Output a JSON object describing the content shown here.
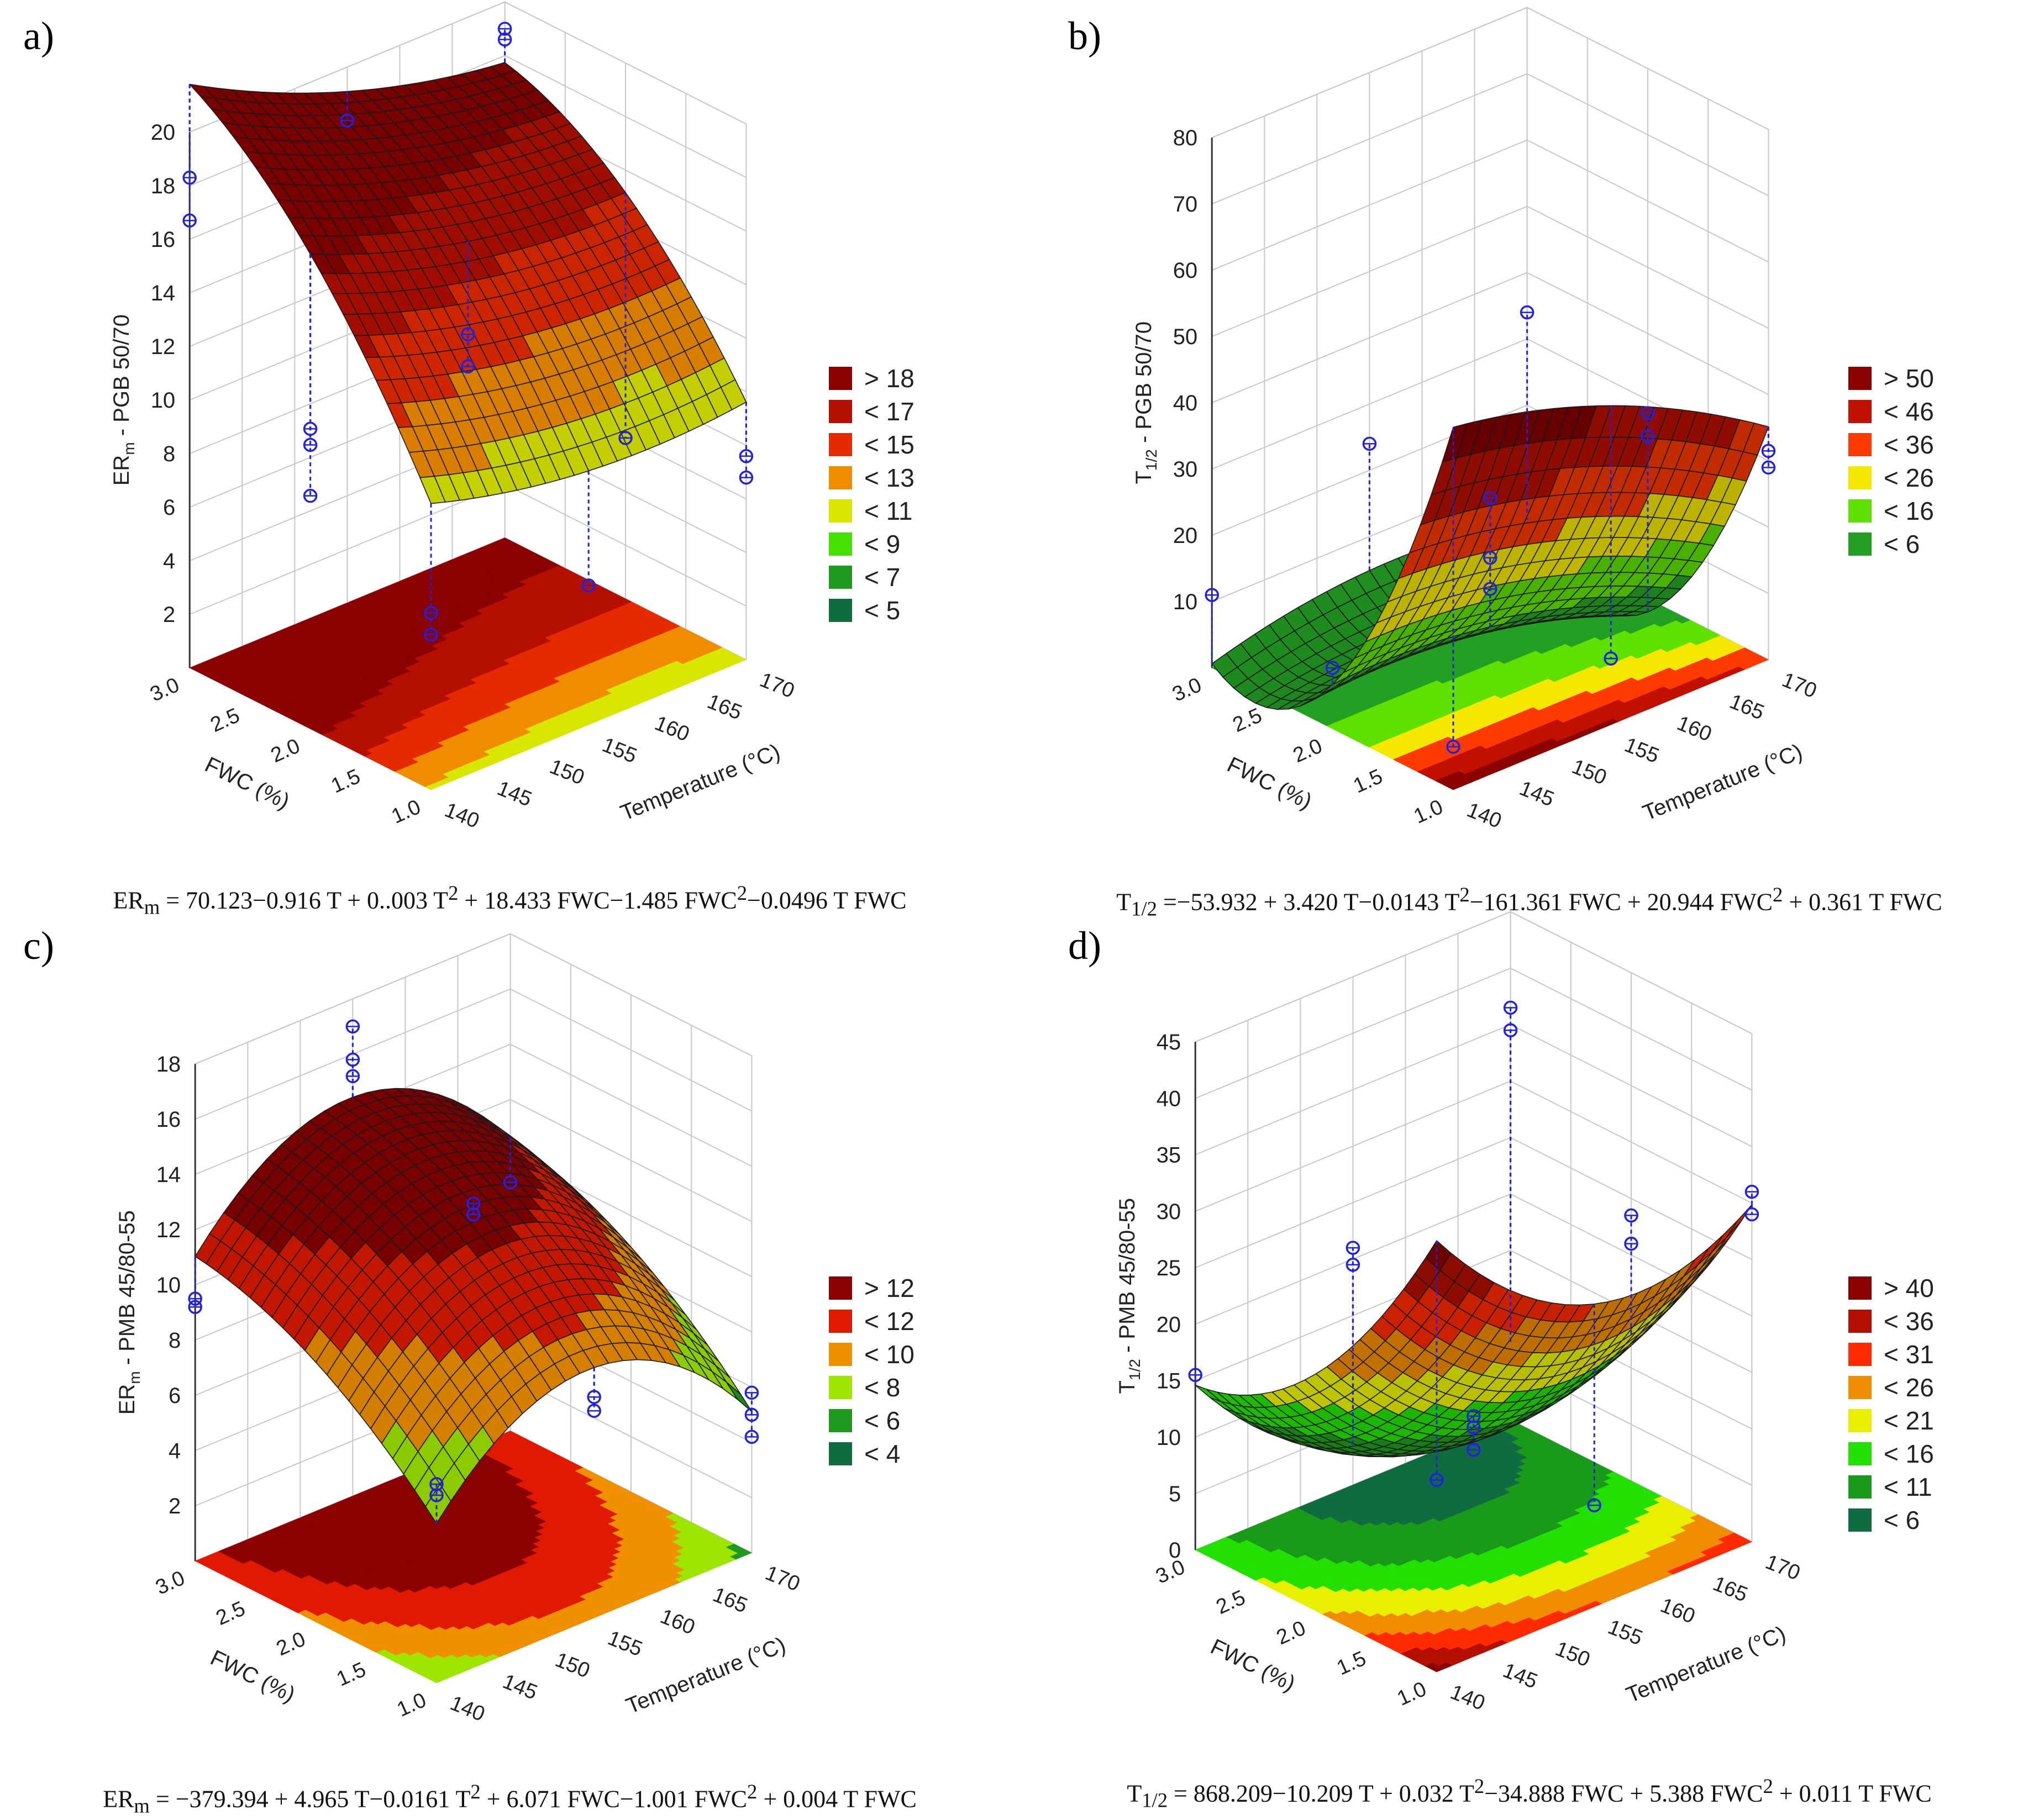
{
  "chart_data": [
    {
      "type": "surface3d",
      "panel_label": "a)",
      "zlabel": "ER",
      "zlabel_sub": "m",
      "zlabel_rest": " - PGB 50/70",
      "xlabel": "Temperature (°C)",
      "ylabel": "FWC (%)",
      "x_ticks": [
        "140",
        "145",
        "150",
        "155",
        "160",
        "165",
        "170"
      ],
      "y_ticks": [
        "1.0",
        "1.5",
        "2.0",
        "2.5",
        "3.0"
      ],
      "z_ticks": [
        "2",
        "4",
        "6",
        "8",
        "10",
        "12",
        "14",
        "16",
        "18",
        "20"
      ],
      "x_range": [
        140,
        170
      ],
      "y_range": [
        1.0,
        3.0
      ],
      "z_range": [
        0,
        20
      ],
      "coef": [
        70.123,
        -0.916,
        0.003,
        18.433,
        -1.485,
        -0.0496
      ],
      "legend": [
        {
          "label": "> 18",
          "color": "#8b0000"
        },
        {
          "label": "< 17",
          "color": "#b40f00"
        },
        {
          "label": "< 15",
          "color": "#e52a00"
        },
        {
          "label": "< 13",
          "color": "#f08c00"
        },
        {
          "label": "< 11",
          "color": "#d8e600"
        },
        {
          "label": "< 9",
          "color": "#46e000"
        },
        {
          "label": "< 7",
          "color": "#1f9a1f"
        },
        {
          "label": "< 5",
          "color": "#0f6b40"
        }
      ],
      "thresholds": [
        5,
        7,
        9,
        11,
        13,
        15,
        17,
        18
      ],
      "points": [
        [
          140,
          3.0,
          18.3
        ],
        [
          140,
          3.0,
          16.7
        ],
        [
          155,
          3.0,
          18.0
        ],
        [
          170,
          3.0,
          19.0
        ],
        [
          170,
          3.0,
          18.6
        ],
        [
          140,
          2.0,
          11.2
        ],
        [
          140,
          2.0,
          10.6
        ],
        [
          140,
          2.0,
          8.7
        ],
        [
          155,
          2.0,
          12.3
        ],
        [
          155,
          2.0,
          11.1
        ],
        [
          170,
          2.0,
          6.0
        ],
        [
          140,
          1.0,
          6.6
        ],
        [
          140,
          1.0,
          5.8
        ],
        [
          155,
          1.0,
          5.2
        ],
        [
          170,
          1.0,
          7.6
        ],
        [
          170,
          1.0,
          6.8
        ]
      ],
      "equation": "ERm = 70.123−0.916 T + 0..003 T2 + 18.433 FWC−1.485 FWC2−0.0496 T FWC",
      "equation_parts": {
        "lhs": "ER",
        "lhs_sub": "m",
        "part1": " = 70.123−0.916 T + 0..003 T",
        "sup1": "2",
        "part2": " + 18.433 FWC−1.485 FWC",
        "sup2": "2",
        "part3": "−0.0496 T FWC"
      }
    },
    {
      "type": "surface3d",
      "panel_label": "b)",
      "zlabel": "T",
      "zlabel_sub": "1/2",
      "zlabel_rest": " - PGB 50/70",
      "xlabel": "Temperature (°C)",
      "ylabel": "FWC (%)",
      "x_ticks": [
        "140",
        "145",
        "150",
        "155",
        "160",
        "165",
        "170"
      ],
      "y_ticks": [
        "1.0",
        "1.5",
        "2.0",
        "2.5",
        "3.0"
      ],
      "z_ticks": [
        "10",
        "20",
        "30",
        "40",
        "50",
        "60",
        "70",
        "80"
      ],
      "x_range": [
        140,
        170
      ],
      "y_range": [
        1.0,
        3.0
      ],
      "z_range": [
        0,
        80
      ],
      "coef": [
        -53.932,
        3.42,
        -0.0143,
        -161.361,
        20.944,
        0.361
      ],
      "legend": [
        {
          "label": "> 50",
          "color": "#8b0000"
        },
        {
          "label": "< 46",
          "color": "#c01000"
        },
        {
          "label": "< 36",
          "color": "#ff3a00"
        },
        {
          "label": "< 26",
          "color": "#f4e800"
        },
        {
          "label": "< 16",
          "color": "#5ee000"
        },
        {
          "label": "< 6",
          "color": "#23a023"
        }
      ],
      "thresholds": [
        6,
        16,
        26,
        36,
        46,
        50
      ],
      "points": [
        [
          140,
          3.0,
          11.0
        ],
        [
          155,
          3.0,
          24.0
        ],
        [
          170,
          3.0,
          34.0
        ],
        [
          140,
          2.0,
          9.2
        ],
        [
          155,
          2.0,
          25.0
        ],
        [
          155,
          2.0,
          16.0
        ],
        [
          155,
          2.0,
          11.3
        ],
        [
          170,
          2.0,
          28.0
        ],
        [
          170,
          2.0,
          24.5
        ],
        [
          140,
          1.0,
          6.5
        ],
        [
          155,
          1.0,
          10.0
        ],
        [
          170,
          1.0,
          31.5
        ],
        [
          170,
          1.0,
          29.0
        ]
      ],
      "equation": "T1/2 =−53.932 + 3.420 T−0.0143 T2−161.361 FWC + 20.944 FWC2 + 0.361 T FWC",
      "equation_parts": {
        "lhs": "T",
        "lhs_sub": "1/2",
        "part1": " =−53.932 + 3.420 T−0.0143 T",
        "sup1": "2",
        "part2": "−161.361 FWC + 20.944 FWC",
        "sup2": "2",
        "part3": " + 0.361 T FWC"
      }
    },
    {
      "type": "surface3d",
      "panel_label": "c)",
      "zlabel": "ER",
      "zlabel_sub": "m",
      "zlabel_rest": " - PMB 45/80-55",
      "xlabel": "Temperature (°C)",
      "ylabel": "FWC (%)",
      "x_ticks": [
        "140",
        "145",
        "150",
        "155",
        "160",
        "165",
        "170"
      ],
      "y_ticks": [
        "1.0",
        "1.5",
        "2.0",
        "2.5",
        "3.0"
      ],
      "z_ticks": [
        "2",
        "4",
        "6",
        "8",
        "10",
        "12",
        "14",
        "16",
        "18"
      ],
      "x_range": [
        140,
        170
      ],
      "y_range": [
        1.0,
        3.0
      ],
      "z_range": [
        0,
        18
      ],
      "coef": [
        -379.394,
        4.965,
        -0.0161,
        6.071,
        -1.001,
        0.004
      ],
      "legend": [
        {
          "label": "> 12",
          "color": "#8b0000"
        },
        {
          "label": "< 12",
          "color": "#e01a00"
        },
        {
          "label": "< 10",
          "color": "#f09000"
        },
        {
          "label": "< 8",
          "color": "#9ee600"
        },
        {
          "label": "< 6",
          "color": "#1f9a1f"
        },
        {
          "label": "< 4",
          "color": "#0f6b40"
        }
      ],
      "thresholds": [
        4,
        6,
        8,
        10,
        12,
        12.5
      ],
      "points": [
        [
          140,
          3.0,
          9.5
        ],
        [
          140,
          3.0,
          9.2
        ],
        [
          155,
          3.0,
          17.0
        ],
        [
          155,
          3.0,
          15.8
        ],
        [
          155,
          3.0,
          15.2
        ],
        [
          170,
          3.0,
          9.0
        ],
        [
          155,
          2.0,
          12.8
        ],
        [
          155,
          2.0,
          12.4
        ],
        [
          140,
          1.0,
          7.2
        ],
        [
          140,
          1.0,
          6.8
        ],
        [
          155,
          1.0,
          8.0
        ],
        [
          155,
          1.0,
          7.5
        ],
        [
          170,
          1.0,
          5.8
        ],
        [
          170,
          1.0,
          5.0
        ],
        [
          170,
          1.0,
          4.2
        ]
      ],
      "equation": "ERm = −379.394 + 4.965 T−0.0161 T2 + 6.071 FWC−1.001 FWC2 + 0.004 T FWC",
      "equation_parts": {
        "lhs": "ER",
        "lhs_sub": "m",
        "part1": " = −379.394 + 4.965 T−0.0161 T",
        "sup1": "2",
        "part2": " + 6.071 FWC−1.001 FWC",
        "sup2": "2",
        "part3": " + 0.004 T FWC"
      }
    },
    {
      "type": "surface3d",
      "panel_label": "d)",
      "zlabel": "T",
      "zlabel_sub": "1/2",
      "zlabel_rest": " - PMB 45/80-55",
      "xlabel": "Temperature (°C)",
      "ylabel": "FWC (%)",
      "x_ticks": [
        "140",
        "145",
        "150",
        "155",
        "160",
        "165",
        "170"
      ],
      "y_ticks": [
        "1.0",
        "1.5",
        "2.0",
        "2.5",
        "3.0"
      ],
      "z_ticks": [
        "0",
        "5",
        "10",
        "15",
        "20",
        "25",
        "30",
        "35",
        "40",
        "45"
      ],
      "x_range": [
        140,
        170
      ],
      "y_range": [
        1.0,
        3.0
      ],
      "z_range": [
        0,
        45
      ],
      "coef": [
        868.209,
        -10.209,
        0.032,
        -34.888,
        5.388,
        0.011
      ],
      "legend": [
        {
          "label": "> 40",
          "color": "#8b0000"
        },
        {
          "label": "< 36",
          "color": "#b40f00"
        },
        {
          "label": "< 31",
          "color": "#ff2a00"
        },
        {
          "label": "< 26",
          "color": "#f08c00"
        },
        {
          "label": "< 21",
          "color": "#e8f000"
        },
        {
          "label": "< 16",
          "color": "#22e000"
        },
        {
          "label": "< 11",
          "color": "#1a9a1a"
        },
        {
          "label": "< 6",
          "color": "#0f6b40"
        }
      ],
      "thresholds": [
        6,
        11,
        16,
        21,
        26,
        31,
        36,
        40
      ],
      "points": [
        [
          140,
          3.0,
          15.5
        ],
        [
          155,
          3.0,
          21.0
        ],
        [
          155,
          3.0,
          19.5
        ],
        [
          170,
          3.0,
          36.5
        ],
        [
          170,
          3.0,
          34.5
        ],
        [
          155,
          2.0,
          11.5
        ],
        [
          155,
          2.0,
          10.5
        ],
        [
          155,
          2.0,
          8.5
        ],
        [
          170,
          2.0,
          23.5
        ],
        [
          170,
          2.0,
          21.0
        ],
        [
          140,
          1.0,
          17.0
        ],
        [
          155,
          1.0,
          9.0
        ],
        [
          170,
          1.0,
          31.0
        ],
        [
          170,
          1.0,
          29.0
        ]
      ],
      "equation": "T1/2 = 868.209−10.209 T + 0.032 T2−34.888 FWC + 5.388 FWC2 + 0.011 T FWC",
      "equation_parts": {
        "lhs": "T",
        "lhs_sub": "1/2",
        "part1": " = 868.209−10.209 T + 0.032 T",
        "sup1": "2",
        "part2": "−34.888 FWC + 5.388 FWC",
        "sup2": "2",
        "part3": " + 0.011 T FWC"
      }
    }
  ],
  "colors": {
    "grid": "#c8c8c8",
    "mesh": "#1a1a1a",
    "point": "#2222dd",
    "pale_surface": "#c8c8c8"
  }
}
